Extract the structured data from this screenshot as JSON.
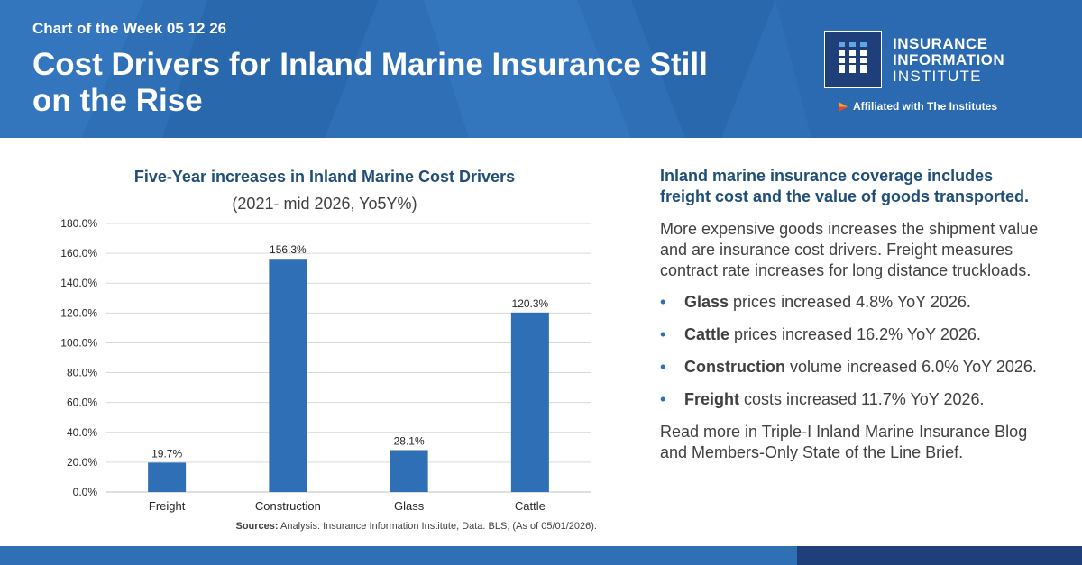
{
  "header": {
    "kicker": "Chart of the Week 05 12 26",
    "headline": "Cost Drivers for Inland Marine Insurance Still on the Rise",
    "logo": {
      "icon": "iii-logo-icon",
      "line1": "INSURANCE",
      "line2": "INFORMATION",
      "line3": "INSTITUTE"
    },
    "affiliation": "Affiliated with The Institutes",
    "colors": {
      "bar": "#2e6fb6",
      "accent": "#1e3f7a"
    }
  },
  "chart": {
    "title": "Five-Year increases in Inland Marine Cost Drivers",
    "subtitle": "(2021- mid 2026, Yo5Y%)"
  },
  "chart_data": {
    "type": "bar",
    "title": "Five-Year increases in Inland Marine Cost Drivers",
    "subtitle": "(2021- mid 2026, Yo5Y%)",
    "categories": [
      "Freight",
      "Construction",
      "Glass",
      "Cattle"
    ],
    "values": [
      19.7,
      156.3,
      28.1,
      120.3
    ],
    "value_labels": [
      "19.7%",
      "156.3%",
      "28.1%",
      "120.3%"
    ],
    "yticks": [
      "0.0%",
      "20.0%",
      "40.0%",
      "60.0%",
      "80.0%",
      "100.0%",
      "120.0%",
      "140.0%",
      "160.0%",
      "180.0%"
    ],
    "ylim": [
      0,
      180
    ],
    "ytick_step": 20,
    "grid": true,
    "bar_color": "#2e6fb6"
  },
  "sources": {
    "label": "Sources:",
    "text": " Analysis: Insurance Information Institute, Data: BLS; (As of 05/01/2026)."
  },
  "panel": {
    "lead": "Inland marine insurance coverage includes freight cost and the value of goods transported.",
    "body": "More expensive goods increases the shipment value and are insurance cost drivers. Freight measures contract rate increases for long distance truckloads.",
    "bullets": [
      {
        "bold": "Glass",
        "text": " prices increased 4.8% YoY 2026."
      },
      {
        "bold": "Cattle",
        "text": " prices increased 16.2% YoY 2026."
      },
      {
        "bold": "Construction",
        "text": " volume increased 6.0% YoY 2026."
      },
      {
        "bold": "Freight",
        "text": " costs increased 11.7% YoY 2026."
      }
    ],
    "tail": "Read more in Triple-I Inland Marine Insurance Blog and Members-Only State of the Line Brief."
  }
}
